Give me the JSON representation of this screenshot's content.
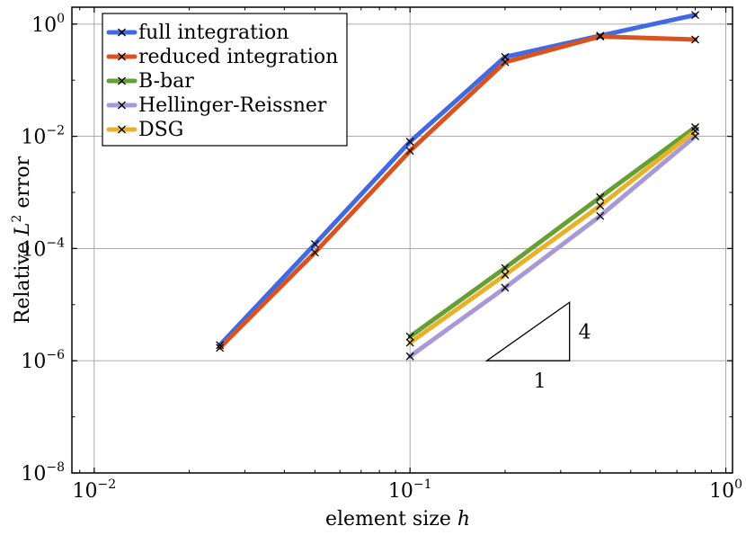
{
  "chart_data": {
    "type": "line",
    "xscale": "log",
    "yscale": "log",
    "xlim": [
      0.0085,
      1.05
    ],
    "ylim": [
      1e-08,
      2.0
    ],
    "grid": true,
    "xlabel_text": "element size",
    "xlabel_var": "h",
    "ylabel_text": "Relative",
    "ylabel_var": "L",
    "ylabel_sup": "2",
    "ylabel_suffix": "error",
    "x_ticks": [
      {
        "base": "10",
        "exp": "−2",
        "value": 0.01
      },
      {
        "base": "10",
        "exp": "−1",
        "value": 0.1
      },
      {
        "base": "10",
        "exp": "0",
        "value": 1
      }
    ],
    "y_ticks": [
      {
        "base": "10",
        "exp": "−8",
        "value": 1e-08
      },
      {
        "base": "10",
        "exp": "−6",
        "value": 1e-06
      },
      {
        "base": "10",
        "exp": "−4",
        "value": 0.0001
      },
      {
        "base": "10",
        "exp": "−2",
        "value": 0.01
      },
      {
        "base": "10",
        "exp": "0",
        "value": 1
      }
    ],
    "legend_position": "top-left",
    "series": [
      {
        "name": "full integration",
        "color": "#4169e1",
        "x": [
          0.025,
          0.05,
          0.1,
          0.2,
          0.4,
          0.8
        ],
        "y": [
          1.9e-06,
          0.00012,
          0.008,
          0.26,
          0.62,
          1.45
        ]
      },
      {
        "name": "reduced integration",
        "color": "#d9531e",
        "x": [
          0.025,
          0.05,
          0.1,
          0.2,
          0.4,
          0.8
        ],
        "y": [
          1.7e-06,
          8.5e-05,
          0.0055,
          0.21,
          0.6,
          0.53
        ]
      },
      {
        "name": "B-bar",
        "color": "#66a033",
        "x": [
          0.1,
          0.2,
          0.4,
          0.8
        ],
        "y": [
          2.7e-06,
          4.5e-05,
          0.00082,
          0.0145
        ]
      },
      {
        "name": "Hellinger-Reissner",
        "color": "#a898d8",
        "x": [
          0.1,
          0.2,
          0.4,
          0.8
        ],
        "y": [
          1.2e-06,
          2e-05,
          0.00038,
          0.01
        ]
      },
      {
        "name": "DSG",
        "color": "#e8b12a",
        "x": [
          0.1,
          0.2,
          0.4,
          0.8
        ],
        "y": [
          2.1e-06,
          3.4e-05,
          0.00058,
          0.0125
        ]
      }
    ],
    "slope_triangle": {
      "run_label": "1",
      "rise_label": "4",
      "x0": 0.175,
      "x1": 0.32,
      "y0": 1e-06,
      "y1": 1.1e-05
    }
  }
}
